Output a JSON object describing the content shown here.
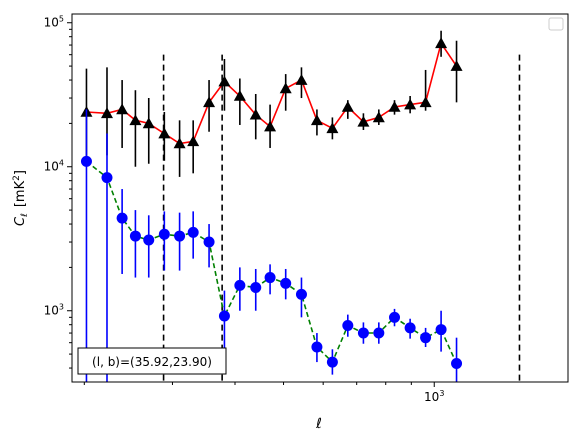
{
  "chart_data": {
    "type": "scatter",
    "xscale": "log",
    "yscale": "log",
    "xlabel": "ℓ",
    "ylabel_main": "C",
    "ylabel_sub": "ℓ",
    "ylabel_unit_prefix": "[mK",
    "ylabel_unit_exp": "2",
    "ylabel_unit_suffix": "]",
    "annotation": "(l, b)=(35.92,23.90)",
    "legend_placement": "top-right",
    "xlim": [
      189,
      1850
    ],
    "ylim": [
      320,
      115000
    ],
    "x_ticks": [
      {
        "value": 1000,
        "base": "10",
        "exp": "3"
      }
    ],
    "y_ticks": [
      {
        "value": 1000,
        "base": "10",
        "exp": "3"
      },
      {
        "value": 10000,
        "base": "10",
        "exp": "4"
      },
      {
        "value": 100000,
        "base": "10",
        "exp": "5"
      }
    ],
    "vlines": [
      {
        "x": 288,
        "y_top": 60000
      },
      {
        "x": 377,
        "y_top": 60000
      },
      {
        "x": 1480,
        "y_top": 60000
      }
    ],
    "series": [
      {
        "line_color": "#ff0000",
        "line_style": "solid",
        "marker": "triangle",
        "marker_color": "#000000",
        "error_color": "#000000",
        "points": [
          {
            "x": 202,
            "y": 24000,
            "lo": 11000,
            "hi": 48000
          },
          {
            "x": 222,
            "y": 23500,
            "lo": 12000,
            "hi": 49000
          },
          {
            "x": 238,
            "y": 25000,
            "lo": 13500,
            "hi": 40000
          },
          {
            "x": 253,
            "y": 21000,
            "lo": 10000,
            "hi": 34000
          },
          {
            "x": 269,
            "y": 20000,
            "lo": 10500,
            "hi": 30000
          },
          {
            "x": 289,
            "y": 17000,
            "lo": 11000,
            "hi": 24000
          },
          {
            "x": 310,
            "y": 14500,
            "lo": 8500,
            "hi": 21000
          },
          {
            "x": 330,
            "y": 15000,
            "lo": 9000,
            "hi": 21000
          },
          {
            "x": 355,
            "y": 28000,
            "lo": 17500,
            "hi": 40000
          },
          {
            "x": 381,
            "y": 39000,
            "lo": 24500,
            "hi": 56000
          },
          {
            "x": 409,
            "y": 31000,
            "lo": 19500,
            "hi": 41000
          },
          {
            "x": 440,
            "y": 23000,
            "lo": 15500,
            "hi": 32000
          },
          {
            "x": 470,
            "y": 19000,
            "lo": 13500,
            "hi": 27000
          },
          {
            "x": 505,
            "y": 35000,
            "lo": 24500,
            "hi": 44000
          },
          {
            "x": 543,
            "y": 40000,
            "lo": 30000,
            "hi": 49000
          },
          {
            "x": 583,
            "y": 21000,
            "lo": 16500,
            "hi": 25000
          },
          {
            "x": 626,
            "y": 18500,
            "lo": 15500,
            "hi": 22000
          },
          {
            "x": 672,
            "y": 26000,
            "lo": 21500,
            "hi": 29000
          },
          {
            "x": 722,
            "y": 20500,
            "lo": 18000,
            "hi": 23500
          },
          {
            "x": 775,
            "y": 22000,
            "lo": 19500,
            "hi": 25000
          },
          {
            "x": 833,
            "y": 26000,
            "lo": 23000,
            "hi": 29000
          },
          {
            "x": 895,
            "y": 27000,
            "lo": 23500,
            "hi": 31000
          },
          {
            "x": 961,
            "y": 28000,
            "lo": 24500,
            "hi": 47000
          },
          {
            "x": 1032,
            "y": 72000,
            "lo": 58000,
            "hi": 88000
          },
          {
            "x": 1108,
            "y": 50000,
            "lo": 28000,
            "hi": 75000
          }
        ]
      },
      {
        "line_color": "#008000",
        "line_style": "dashed",
        "marker": "circle",
        "marker_color": "#0000ff",
        "error_color": "#0000ff",
        "points": [
          {
            "x": 202,
            "y": 10900,
            "lo": 320,
            "hi": 25000
          },
          {
            "x": 222,
            "y": 8400,
            "lo": 320,
            "hi": 17000
          },
          {
            "x": 238,
            "y": 4400,
            "lo": 1800,
            "hi": 7000
          },
          {
            "x": 253,
            "y": 3300,
            "lo": 1700,
            "hi": 5000
          },
          {
            "x": 269,
            "y": 3100,
            "lo": 1700,
            "hi": 4600
          },
          {
            "x": 289,
            "y": 3400,
            "lo": 1900,
            "hi": 4900
          },
          {
            "x": 310,
            "y": 3300,
            "lo": 1900,
            "hi": 4800
          },
          {
            "x": 330,
            "y": 3500,
            "lo": 2300,
            "hi": 4900
          },
          {
            "x": 355,
            "y": 3000,
            "lo": 2000,
            "hi": 4000
          },
          {
            "x": 381,
            "y": 920,
            "lo": 530,
            "hi": 1380
          },
          {
            "x": 409,
            "y": 1500,
            "lo": 1000,
            "hi": 2000
          },
          {
            "x": 440,
            "y": 1450,
            "lo": 1000,
            "hi": 1950
          },
          {
            "x": 470,
            "y": 1700,
            "lo": 1300,
            "hi": 2100
          },
          {
            "x": 505,
            "y": 1550,
            "lo": 1200,
            "hi": 1950
          },
          {
            "x": 543,
            "y": 1300,
            "lo": 900,
            "hi": 1700
          },
          {
            "x": 583,
            "y": 560,
            "lo": 440,
            "hi": 700
          },
          {
            "x": 626,
            "y": 440,
            "lo": 360,
            "hi": 540
          },
          {
            "x": 672,
            "y": 790,
            "lo": 660,
            "hi": 940
          },
          {
            "x": 722,
            "y": 700,
            "lo": 590,
            "hi": 830
          },
          {
            "x": 775,
            "y": 700,
            "lo": 590,
            "hi": 830
          },
          {
            "x": 833,
            "y": 900,
            "lo": 780,
            "hi": 1030
          },
          {
            "x": 895,
            "y": 760,
            "lo": 640,
            "hi": 880
          },
          {
            "x": 961,
            "y": 650,
            "lo": 560,
            "hi": 760
          },
          {
            "x": 1032,
            "y": 740,
            "lo": 520,
            "hi": 1000
          },
          {
            "x": 1108,
            "y": 430,
            "lo": 320,
            "hi": 650
          }
        ]
      }
    ]
  }
}
